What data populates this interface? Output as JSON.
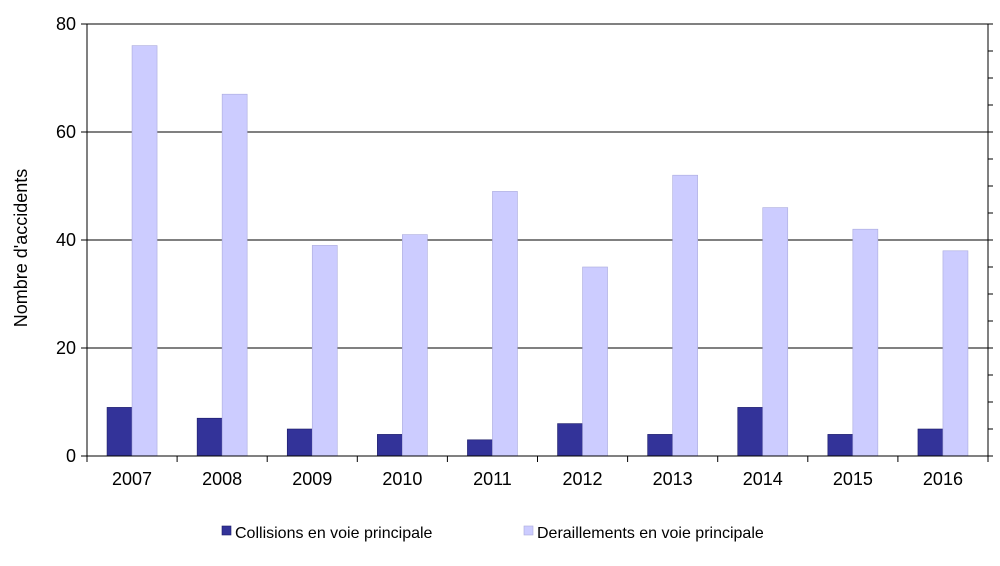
{
  "chart_data": {
    "type": "bar",
    "title": "",
    "xlabel": "",
    "ylabel": "Nombre d'accidents",
    "ylim": [
      0,
      80
    ],
    "yticks": [
      0,
      20,
      40,
      60,
      80
    ],
    "grid": true,
    "legend_position": "bottom",
    "categories": [
      "2007",
      "2008",
      "2009",
      "2010",
      "2011",
      "2012",
      "2013",
      "2014",
      "2015",
      "2016"
    ],
    "series": [
      {
        "name": "Collisions en voie principale",
        "color": "#333399",
        "values": [
          9,
          7,
          5,
          4,
          3,
          6,
          4,
          9,
          4,
          5
        ]
      },
      {
        "name": "Deraillements en voie principale",
        "color": "#ccccff",
        "values": [
          76,
          67,
          39,
          41,
          49,
          35,
          52,
          46,
          42,
          38
        ]
      }
    ]
  }
}
